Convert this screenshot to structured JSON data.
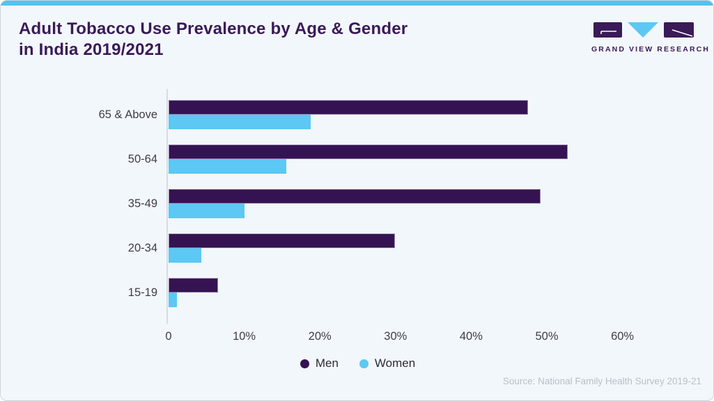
{
  "header": {
    "title_line1": "Adult Tobacco Use Prevalence by Age & Gender",
    "title_line2": "in India 2019/2021"
  },
  "logo": {
    "text": "GRAND VIEW RESEARCH",
    "purple": "#3a1a57",
    "blue": "#5cc8f3"
  },
  "chart_data": {
    "type": "bar",
    "orientation": "horizontal",
    "title": "Adult Tobacco Use Prevalence by Age & Gender in India 2019/2021",
    "categories": [
      "65 & Above",
      "50-64",
      "35-49",
      "20-34",
      "15-19"
    ],
    "series": [
      {
        "name": "Men",
        "color": "#351352",
        "values": [
          47.5,
          52.8,
          49.2,
          29.9,
          6.5
        ]
      },
      {
        "name": "Women",
        "color": "#5cc8f3",
        "values": [
          18.8,
          15.6,
          10.0,
          4.3,
          1.1
        ]
      }
    ],
    "xlim": [
      0,
      66
    ],
    "x_ticks": [
      {
        "value": 0,
        "label": "0"
      },
      {
        "value": 10,
        "label": "10%"
      },
      {
        "value": 20,
        "label": "20%"
      },
      {
        "value": 30,
        "label": "30%"
      },
      {
        "value": 40,
        "label": "40%"
      },
      {
        "value": 50,
        "label": "50%"
      },
      {
        "value": 60,
        "label": "60%"
      }
    ],
    "grid": false,
    "legend_position": "bottom"
  },
  "legend": {
    "items": [
      {
        "label": "Men",
        "color": "#351352"
      },
      {
        "label": "Women",
        "color": "#5cc8f3"
      }
    ]
  },
  "source": "Source: National Family Health Survey 2019-21",
  "colors": {
    "accent_strip": "#55c1ee",
    "card_bg": "#f2f7fb",
    "card_border": "#cbd5dc",
    "axis_line": "#d8dce0",
    "label_text": "#3e3d47",
    "source_text": "#b8bfc6",
    "title_text": "#3a1a57"
  }
}
